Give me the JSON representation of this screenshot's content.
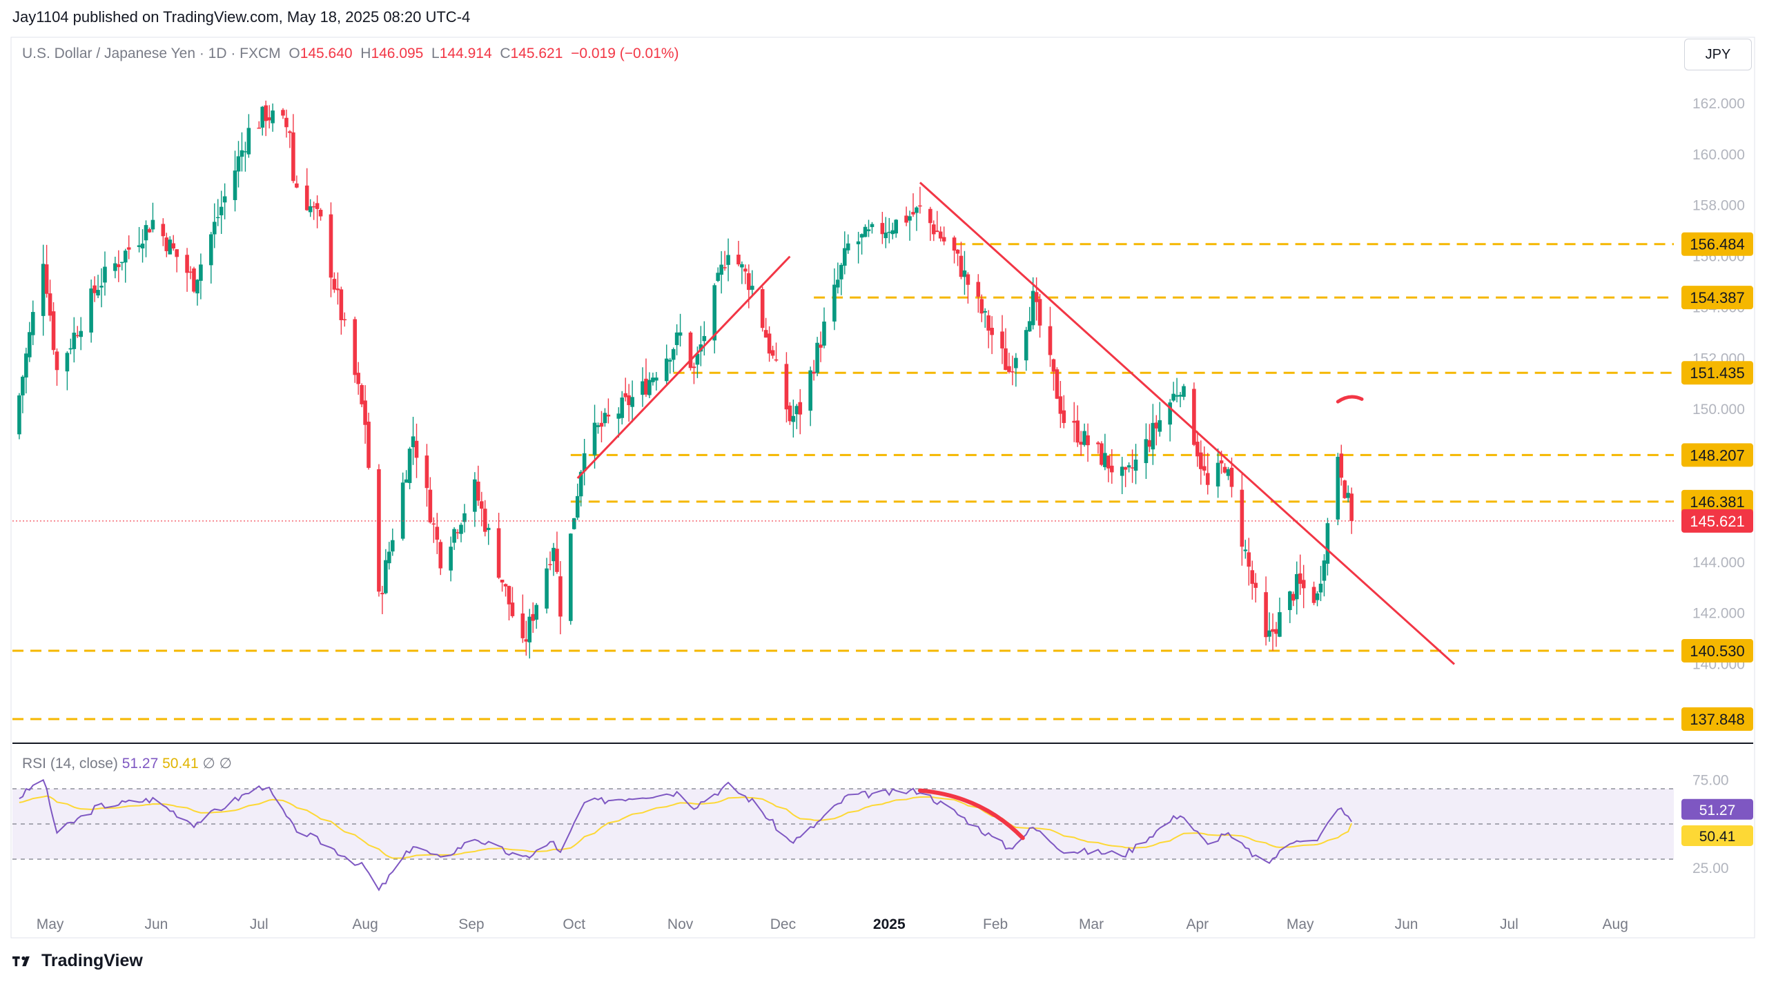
{
  "header": {
    "published": "Jay1104 published on TradingView.com, May 18, 2025 08:20 UTC-4",
    "symbol": "U.S. Dollar / Japanese Yen · 1D · FXCM",
    "o_label": "O",
    "o_value": "145.640",
    "h_label": "H",
    "h_value": "146.095",
    "l_label": "L",
    "l_value": "144.914",
    "c_label": "C",
    "c_value": "145.621",
    "change": "−0.019 (−0.01%)"
  },
  "currency": "JPY",
  "brand": "TradingView",
  "colors": {
    "up": "#089981",
    "down": "#f23645",
    "level": "#f5b700",
    "trend": "#f23645",
    "rsi": "#7e57c2",
    "rsi_ma": "#fdd835",
    "rsi_band": "#7e57c2"
  },
  "chart_data": {
    "type": "candlestick",
    "title": "U.S. Dollar / Japanese Yen · 1D · FXCM",
    "y_ticks": [
      "162.000",
      "160.000",
      "158.000",
      "156.000",
      "154.000",
      "152.000",
      "150.000",
      "148.000",
      "146.000",
      "144.000",
      "142.000",
      "140.000"
    ],
    "x_ticks": [
      "May",
      "Jun",
      "Jul",
      "Aug",
      "Sep",
      "Oct",
      "Nov",
      "Dec",
      "2025",
      "Feb",
      "Mar",
      "Apr",
      "May",
      "Jun",
      "Jul",
      "Aug"
    ],
    "ylim": [
      136.9,
      164.6
    ],
    "last_price": "145.621",
    "horizontal_levels": [
      {
        "label": "156.484",
        "value": 156.484,
        "from": "2025-01-20"
      },
      {
        "label": "154.387",
        "value": 154.387,
        "from": "2024-12-10"
      },
      {
        "label": "151.435",
        "value": 151.435,
        "from": "2024-10-30"
      },
      {
        "label": "148.207",
        "value": 148.207,
        "from": "2024-09-30"
      },
      {
        "label": "146.381",
        "value": 146.381,
        "from": "2024-09-30"
      },
      {
        "label": "140.530",
        "value": 140.53,
        "from": "2024-04-20"
      },
      {
        "label": "137.848",
        "value": 137.848,
        "from": "2024-04-20"
      }
    ],
    "trend_lines": [
      {
        "from": {
          "date": "2024-10-02",
          "price": 147.3
        },
        "to": {
          "date": "2024-12-03",
          "price": 156.0
        }
      },
      {
        "from": {
          "date": "2025-01-10",
          "price": 158.9
        },
        "to": {
          "date": "2025-06-15",
          "price": 140.0
        }
      }
    ],
    "annotation_arc": {
      "from": {
        "date": "2025-05-12",
        "price": 150.3
      },
      "to": {
        "date": "2025-05-19",
        "price": 150.4
      }
    },
    "anchors": [
      {
        "date": "2024-04-20",
        "close": 149.0
      },
      {
        "date": "2024-04-29",
        "close": 156.0
      },
      {
        "date": "2024-05-03",
        "close": 151.5
      },
      {
        "date": "2024-05-15",
        "close": 154.9
      },
      {
        "date": "2024-05-31",
        "close": 157.4
      },
      {
        "date": "2024-06-12",
        "close": 155.0
      },
      {
        "date": "2024-06-28",
        "close": 160.9
      },
      {
        "date": "2024-07-03",
        "close": 161.6
      },
      {
        "date": "2024-07-10",
        "close": 161.0
      },
      {
        "date": "2024-07-11",
        "close": 159.0
      },
      {
        "date": "2024-07-19",
        "close": 157.3
      },
      {
        "date": "2024-08-01",
        "close": 149.5
      },
      {
        "date": "2024-08-05",
        "close": 142.5
      },
      {
        "date": "2024-08-15",
        "close": 149.0
      },
      {
        "date": "2024-08-23",
        "close": 144.2
      },
      {
        "date": "2024-09-02",
        "close": 146.9
      },
      {
        "date": "2024-09-16",
        "close": 140.6
      },
      {
        "date": "2024-09-25",
        "close": 144.8
      },
      {
        "date": "2024-09-27",
        "close": 142.2
      },
      {
        "date": "2024-10-04",
        "close": 148.7
      },
      {
        "date": "2024-10-21",
        "close": 150.8
      },
      {
        "date": "2024-11-01",
        "close": 152.9
      },
      {
        "date": "2024-11-05",
        "close": 151.5
      },
      {
        "date": "2024-11-15",
        "close": 156.4
      },
      {
        "date": "2024-11-22",
        "close": 154.8
      },
      {
        "date": "2024-12-03",
        "close": 149.6
      },
      {
        "date": "2024-12-06",
        "close": 150.0
      },
      {
        "date": "2024-12-20",
        "close": 156.4
      },
      {
        "date": "2025-01-10",
        "close": 157.8
      },
      {
        "date": "2025-01-20",
        "close": 156.1
      },
      {
        "date": "2025-02-05",
        "close": 151.5
      },
      {
        "date": "2025-02-12",
        "close": 154.3
      },
      {
        "date": "2025-02-21",
        "close": 149.6
      },
      {
        "date": "2025-03-11",
        "close": 147.2
      },
      {
        "date": "2025-03-27",
        "close": 151.0
      },
      {
        "date": "2025-04-04",
        "close": 146.9
      },
      {
        "date": "2025-04-09",
        "close": 147.9
      },
      {
        "date": "2025-04-21",
        "close": 140.8
      },
      {
        "date": "2025-04-30",
        "close": 143.1
      },
      {
        "date": "2025-05-06",
        "close": 142.6
      },
      {
        "date": "2025-05-12",
        "close": 148.3
      },
      {
        "date": "2025-05-16",
        "close": 145.621
      }
    ],
    "rsi": {
      "label": "RSI (14, close)",
      "value": "51.27",
      "ma_value": "50.41",
      "extra": "∅ ∅",
      "ylim": [
        0,
        100
      ],
      "y_ticks": [
        "75.00",
        "25.00"
      ],
      "bands": [
        70,
        50,
        30
      ],
      "anchors": [
        {
          "date": "2024-04-20",
          "rsi": 62
        },
        {
          "date": "2024-04-29",
          "rsi": 76
        },
        {
          "date": "2024-05-03",
          "rsi": 45
        },
        {
          "date": "2024-05-15",
          "rsi": 60
        },
        {
          "date": "2024-05-31",
          "rsi": 64
        },
        {
          "date": "2024-06-12",
          "rsi": 50
        },
        {
          "date": "2024-06-28",
          "rsi": 68
        },
        {
          "date": "2024-07-03",
          "rsi": 72
        },
        {
          "date": "2024-07-11",
          "rsi": 48
        },
        {
          "date": "2024-07-19",
          "rsi": 40
        },
        {
          "date": "2024-08-01",
          "rsi": 25
        },
        {
          "date": "2024-08-05",
          "rsi": 12
        },
        {
          "date": "2024-08-15",
          "rsi": 38
        },
        {
          "date": "2024-08-23",
          "rsi": 30
        },
        {
          "date": "2024-09-02",
          "rsi": 42
        },
        {
          "date": "2024-09-16",
          "rsi": 30
        },
        {
          "date": "2024-09-25",
          "rsi": 40
        },
        {
          "date": "2024-09-27",
          "rsi": 33
        },
        {
          "date": "2024-10-04",
          "rsi": 62
        },
        {
          "date": "2024-10-21",
          "rsi": 66
        },
        {
          "date": "2024-11-01",
          "rsi": 68
        },
        {
          "date": "2024-11-05",
          "rsi": 60
        },
        {
          "date": "2024-11-15",
          "rsi": 72
        },
        {
          "date": "2024-11-22",
          "rsi": 63
        },
        {
          "date": "2024-12-03",
          "rsi": 40
        },
        {
          "date": "2024-12-06",
          "rsi": 42
        },
        {
          "date": "2024-12-20",
          "rsi": 66
        },
        {
          "date": "2025-01-10",
          "rsi": 69
        },
        {
          "date": "2025-01-20",
          "rsi": 57
        },
        {
          "date": "2025-02-05",
          "rsi": 36
        },
        {
          "date": "2025-02-12",
          "rsi": 48
        },
        {
          "date": "2025-02-21",
          "rsi": 35
        },
        {
          "date": "2025-03-11",
          "rsi": 33
        },
        {
          "date": "2025-03-27",
          "rsi": 56
        },
        {
          "date": "2025-04-04",
          "rsi": 38
        },
        {
          "date": "2025-04-09",
          "rsi": 45
        },
        {
          "date": "2025-04-21",
          "rsi": 27
        },
        {
          "date": "2025-04-30",
          "rsi": 42
        },
        {
          "date": "2025-05-06",
          "rsi": 40
        },
        {
          "date": "2025-05-12",
          "rsi": 60
        },
        {
          "date": "2025-05-16",
          "rsi": 51.27
        }
      ]
    }
  }
}
